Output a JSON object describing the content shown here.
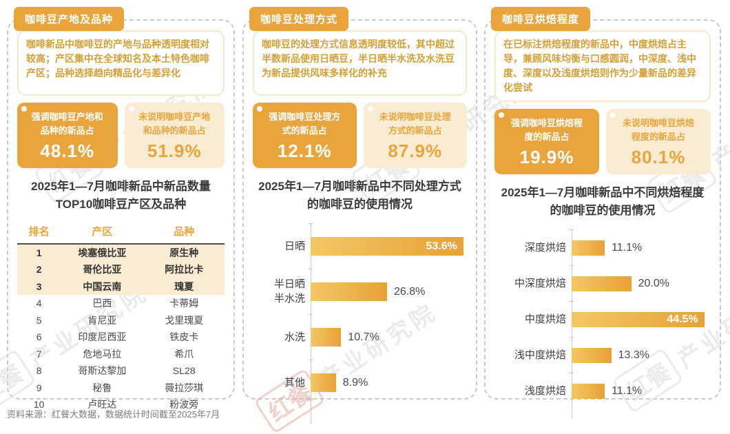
{
  "page": {
    "source_note": "资料来源：红餐大数据，数据统计时间截至2025年7月",
    "watermark_brand": "红餐",
    "watermark_org": "产业研究院",
    "accent_color": "#E9A53C",
    "cream_color": "#FAECD2"
  },
  "panels": [
    {
      "badge": "咖啡豆产地及品种",
      "description": "咖啡新品中咖啡豆的产地与品种透明度相对较高；产区集中在全球知名及本土特色咖啡产区；品种选择趋向精品化与差异化",
      "stats": [
        {
          "label": "强调咖啡豆产地和品种的新品占",
          "value": "48.1%"
        },
        {
          "label": "未说明咖啡豆产地和品种的新品占",
          "value": "51.9%"
        }
      ]
    },
    {
      "badge": "咖啡豆处理方式",
      "description": "咖啡豆的处理方式信息透明度较低，其中超过半数新品使用日晒豆，半日晒半水洗及水洗豆为新品提供风味多样化的补充",
      "stats": [
        {
          "label": "强调咖啡豆处理方式的新品占",
          "value": "12.1%"
        },
        {
          "label": "未说明咖啡豆处理方式的新品占",
          "value": "87.9%"
        }
      ]
    },
    {
      "badge": "咖啡豆烘焙程度",
      "description": "在已标注烘焙程度的新品中，中度烘焙占主导，兼顾风味均衡与口感圆润，中深度、浅中度、深度以及浅度烘焙则作为少量新品的差异化尝试",
      "stats": [
        {
          "label": "强调咖啡豆烘焙程度的新品占",
          "value": "19.9%"
        },
        {
          "label": "未说明咖啡豆烘焙程度的新品占",
          "value": "80.1%"
        }
      ]
    }
  ],
  "chart_data": [
    {
      "type": "table",
      "title": "2025年1—7月咖啡新品中新品数量TOP10咖啡豆产区及品种",
      "columns": [
        "排名",
        "产区",
        "品种"
      ],
      "rows": [
        [
          "1",
          "埃塞俄比亚",
          "原生种"
        ],
        [
          "2",
          "哥伦比亚",
          "阿拉比卡"
        ],
        [
          "3",
          "中国云南",
          "瑰夏"
        ],
        [
          "4",
          "巴西",
          "卡蒂姆"
        ],
        [
          "5",
          "肯尼亚",
          "戈里瑰夏"
        ],
        [
          "6",
          "印度尼西亚",
          "铁皮卡"
        ],
        [
          "7",
          "危地马拉",
          "希爪"
        ],
        [
          "8",
          "哥斯达黎加",
          "SL28"
        ],
        [
          "9",
          "秘鲁",
          "薇拉莎琪"
        ],
        [
          "10",
          "卢旺达",
          "粉波旁"
        ]
      ],
      "highlighted_rows": 3
    },
    {
      "type": "bar",
      "orientation": "horizontal",
      "title": "2025年1—7月咖啡新品中不同处理方式的咖啡豆的使用情况",
      "categories": [
        "日晒",
        "半日晒半水洗",
        "水洗",
        "其他"
      ],
      "values": [
        53.6,
        26.8,
        10.7,
        8.9
      ],
      "unit": "%",
      "xlim": [
        0,
        60
      ],
      "grid": false,
      "legend": false
    },
    {
      "type": "bar",
      "orientation": "horizontal",
      "title": "2025年1—7月咖啡新品中不同烘焙程度的咖啡豆的使用情况",
      "categories": [
        "深度烘焙",
        "中深度烘焙",
        "中度烘焙",
        "浅中度烘焙",
        "浅度烘焙"
      ],
      "values": [
        11.1,
        20.0,
        44.5,
        13.3,
        11.1
      ],
      "unit": "%",
      "xlim": [
        0,
        50
      ],
      "grid": false,
      "legend": false
    }
  ]
}
